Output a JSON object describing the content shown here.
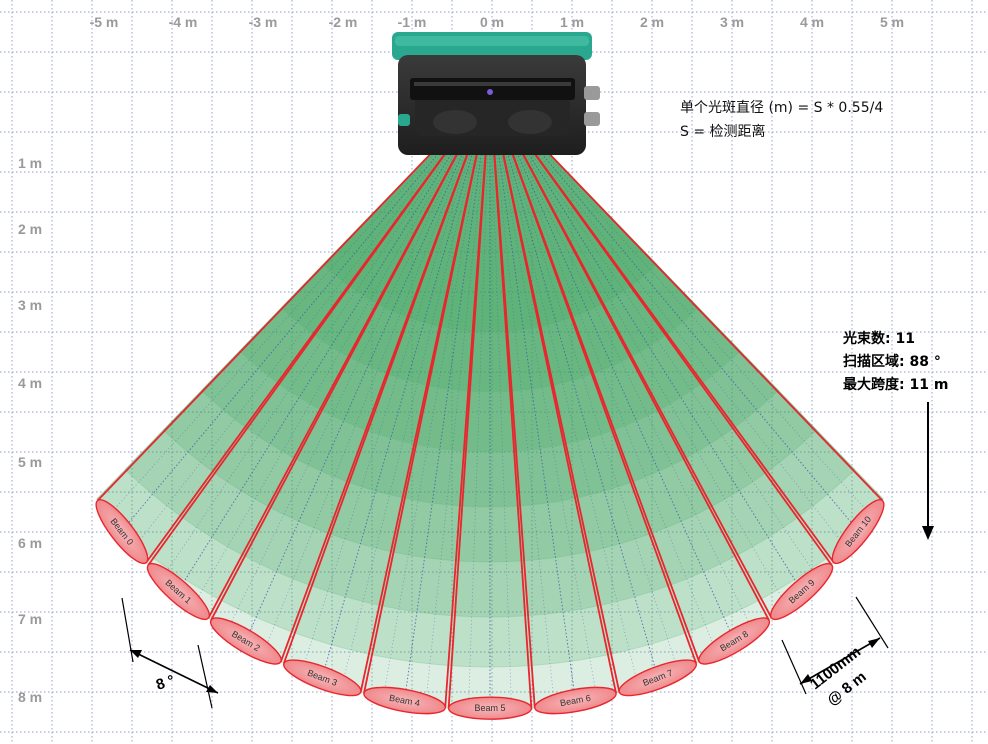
{
  "x_axis_labels": [
    "-5 m",
    "-4 m",
    "-3 m",
    "-2 m",
    "-1 m",
    "0 m",
    "1 m",
    "2 m",
    "3 m",
    "4 m",
    "5 m"
  ],
  "y_axis_labels": [
    "1 m",
    "2 m",
    "3 m",
    "4 m",
    "5 m",
    "6 m",
    "7 m",
    "8 m"
  ],
  "formula": {
    "line1": "单个光斑直径 (m) = S * 0.55/4",
    "line2": "S = 检测距离"
  },
  "specs": {
    "beams": "光束数: 11",
    "scan_area": "扫描区域: 88 °",
    "max_span": "最大跨度: 11 m"
  },
  "beam_labels": [
    "Beam 0",
    "Beam 1",
    "Beam 2",
    "Beam 3",
    "Beam 4",
    "Beam 5",
    "Beam 6",
    "Beam 7",
    "Beam 8",
    "Beam 9",
    "Beam 10"
  ],
  "angle_annotation": "8 °",
  "spot_annotation": {
    "line1": "1100mm",
    "line2": "@ 8 m"
  },
  "colors": {
    "beam_edge": "#e8262e",
    "fan_green": "#3a9e5a",
    "spot_fill": "#f49a9d",
    "grid": "#7f93c6",
    "sensor_body": "#2a2a2a",
    "sensor_cap": "#2aa88f"
  },
  "icons": {
    "sensor": "laser-scanner-device-icon"
  }
}
